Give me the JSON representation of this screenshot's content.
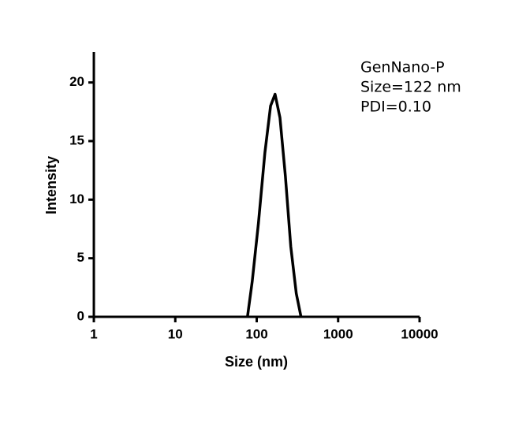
{
  "chart_data": {
    "type": "line",
    "x_label": "Size (nm)",
    "y_label": "Intensity",
    "annotations": [
      "GenNano-P",
      "Size=122 nm",
      "PDI=0.10"
    ],
    "x": [
      77,
      88,
      105,
      126,
      148,
      168,
      193,
      225,
      262,
      306,
      350
    ],
    "values": [
      0,
      3,
      8,
      14,
      18,
      19,
      17,
      12,
      6,
      2,
      0
    ],
    "color": "#000000",
    "xscale": "log",
    "xlim": [
      1,
      10000
    ],
    "xticks": [
      1,
      10,
      100,
      1000,
      10000
    ],
    "ylim": [
      0,
      22.6
    ],
    "yticks": [
      0,
      5,
      10,
      15,
      20
    ]
  }
}
